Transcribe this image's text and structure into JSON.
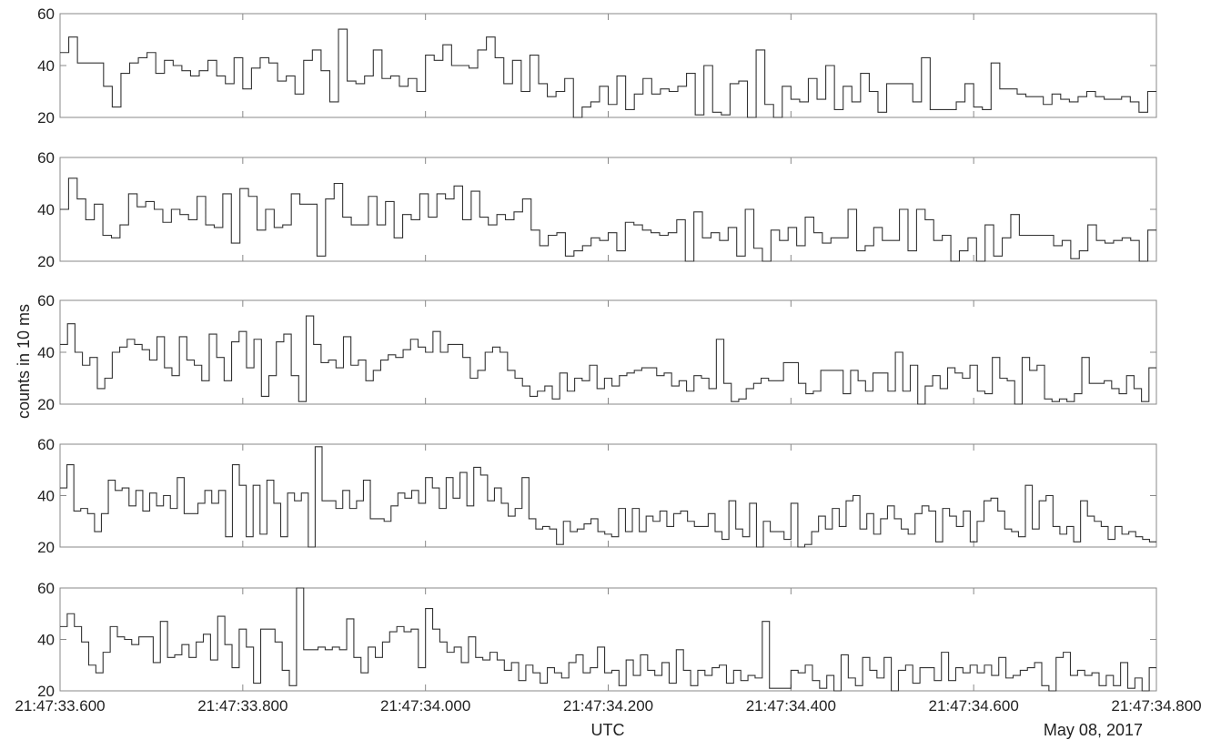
{
  "chart_data": {
    "type": "line",
    "subtype": "step",
    "panel_count": 5,
    "ylabel": "counts in 10 ms",
    "xlabel": "UTC",
    "date_label": "May 08, 2017",
    "ylim": [
      20,
      60
    ],
    "yticks": [
      "20",
      "40",
      "60"
    ],
    "xlim": [
      "21:47:33.600",
      "21:47:34.800"
    ],
    "xticks": [
      "21:47:33.600",
      "21:47:33.800",
      "21:47:34.000",
      "21:47:34.200",
      "21:47:34.400",
      "21:47:34.600",
      "21:47:34.800"
    ],
    "x_start": "21:47:33.600",
    "bin_width_ms": 10,
    "grid": false,
    "legend": "none",
    "colors": {
      "line": "#333333",
      "axis": "#888888"
    },
    "series": [
      {
        "values": [
          45,
          51,
          41,
          41,
          41,
          32,
          24,
          37,
          41,
          43,
          45,
          37,
          42,
          40,
          38,
          36,
          38,
          42,
          36,
          33,
          43,
          31,
          39,
          43,
          41,
          34,
          36,
          29,
          42,
          46,
          38,
          26,
          54,
          34,
          33,
          36,
          46,
          35,
          36,
          32,
          35,
          30,
          44,
          42,
          48,
          40,
          40,
          39,
          46,
          51,
          43,
          33,
          42,
          30,
          44,
          33,
          28,
          30,
          35,
          20,
          24,
          26,
          32,
          25,
          36,
          23,
          29,
          35,
          29,
          31,
          30,
          32,
          37,
          21,
          40,
          22,
          21,
          33,
          34,
          20,
          46,
          25,
          20,
          32,
          27,
          26,
          35,
          27,
          40,
          23,
          32,
          26,
          37,
          30,
          22,
          33,
          33,
          33,
          26,
          43,
          23,
          23,
          23,
          26,
          33,
          24,
          23,
          41,
          31,
          31,
          29,
          28,
          28,
          25,
          29,
          27,
          26,
          28,
          30,
          28,
          27,
          27,
          28,
          26,
          22,
          30
        ]
      },
      {
        "values": [
          40,
          52,
          44,
          36,
          42,
          30,
          29,
          34,
          46,
          41,
          43,
          40,
          35,
          40,
          38,
          36,
          45,
          34,
          33,
          46,
          27,
          48,
          45,
          32,
          40,
          33,
          34,
          46,
          42,
          42,
          22,
          44,
          50,
          37,
          34,
          34,
          45,
          34,
          43,
          29,
          38,
          36,
          46,
          37,
          46,
          44,
          49,
          36,
          47,
          37,
          34,
          38,
          36,
          39,
          44,
          32,
          26,
          30,
          31,
          22,
          24,
          26,
          29,
          28,
          31,
          24,
          35,
          34,
          32,
          31,
          30,
          31,
          36,
          20,
          39,
          29,
          31,
          28,
          33,
          22,
          40,
          25,
          20,
          32,
          28,
          33,
          26,
          37,
          31,
          27,
          29,
          29,
          40,
          24,
          26,
          33,
          28,
          28,
          40,
          24,
          40,
          36,
          28,
          30,
          20,
          24,
          29,
          20,
          34,
          22,
          29,
          38,
          30,
          30,
          30,
          30,
          26,
          28,
          21,
          24,
          34,
          28,
          27,
          28,
          29,
          28,
          20,
          32
        ]
      },
      {
        "values": [
          43,
          51,
          40,
          35,
          38,
          26,
          30,
          40,
          42,
          45,
          43,
          41,
          37,
          46,
          34,
          31,
          46,
          37,
          35,
          29,
          47,
          38,
          29,
          44,
          48,
          34,
          45,
          23,
          31,
          44,
          47,
          31,
          21,
          54,
          43,
          36,
          37,
          34,
          46,
          35,
          37,
          29,
          33,
          37,
          39,
          38,
          41,
          45,
          42,
          40,
          48,
          40,
          43,
          43,
          38,
          30,
          33,
          40,
          42,
          40,
          33,
          30,
          27,
          23,
          25,
          27,
          22,
          32,
          25,
          30,
          29,
          35,
          26,
          30,
          27,
          31,
          32,
          33,
          34,
          34,
          31,
          32,
          27,
          29,
          25,
          31,
          30,
          26,
          45,
          28,
          21,
          22,
          26,
          28,
          30,
          29,
          29,
          36,
          36,
          28,
          24,
          25,
          33,
          33,
          33,
          24,
          33,
          29,
          25,
          32,
          32,
          25,
          40,
          25,
          35,
          20,
          27,
          31,
          26,
          34,
          32,
          30,
          35,
          25,
          24,
          38,
          30,
          29,
          20,
          38,
          33,
          35,
          22,
          21,
          22,
          21,
          24,
          38,
          28,
          28,
          29,
          26,
          24,
          31,
          26,
          21,
          34
        ]
      },
      {
        "values": [
          43,
          52,
          34,
          35,
          33,
          26,
          33,
          46,
          42,
          43,
          36,
          42,
          34,
          41,
          36,
          40,
          35,
          47,
          33,
          33,
          37,
          42,
          37,
          42,
          24,
          52,
          44,
          24,
          44,
          25,
          46,
          37,
          24,
          41,
          38,
          41,
          20,
          59,
          38,
          38,
          35,
          42,
          35,
          38,
          46,
          31,
          31,
          30,
          36,
          41,
          39,
          42,
          37,
          47,
          43,
          35,
          47,
          39,
          49,
          36,
          51,
          48,
          38,
          43,
          37,
          32,
          35,
          47,
          31,
          27,
          28,
          27,
          21,
          30,
          26,
          27,
          29,
          31,
          26,
          25,
          24,
          35,
          26,
          35,
          26,
          32,
          30,
          34,
          28,
          33,
          34,
          30,
          28,
          28,
          33,
          26,
          23,
          38,
          27,
          24,
          37,
          20,
          30,
          26,
          26,
          23,
          37,
          20,
          21,
          26,
          32,
          27,
          35,
          28,
          38,
          40,
          27,
          33,
          25,
          31,
          36,
          31,
          27,
          25,
          33,
          36,
          34,
          22,
          35,
          32,
          28,
          34,
          22,
          30,
          38,
          39,
          34,
          27,
          26,
          24,
          44,
          27,
          38,
          40,
          28,
          25,
          28,
          22,
          38,
          32,
          30,
          28,
          23,
          28,
          25,
          26,
          24,
          23,
          22
        ]
      },
      {
        "values": [
          45,
          50,
          45,
          39,
          30,
          27,
          35,
          45,
          41,
          40,
          38,
          41,
          41,
          31,
          47,
          33,
          34,
          38,
          33,
          39,
          42,
          32,
          49,
          38,
          29,
          44,
          37,
          23,
          44,
          44,
          39,
          28,
          22,
          60,
          36,
          36,
          37,
          36,
          37,
          36,
          48,
          33,
          27,
          37,
          33,
          39,
          43,
          45,
          43,
          44,
          29,
          52,
          44,
          39,
          35,
          37,
          31,
          41,
          33,
          32,
          35,
          32,
          28,
          31,
          24,
          30,
          27,
          23,
          29,
          27,
          25,
          31,
          34,
          27,
          29,
          37,
          27,
          28,
          22,
          32,
          26,
          34,
          28,
          26,
          31,
          23,
          36,
          28,
          22,
          28,
          26,
          29,
          30,
          23,
          28,
          24,
          26,
          25,
          47,
          21,
          21,
          21,
          28,
          27,
          30,
          24,
          21,
          26,
          20,
          34,
          25,
          22,
          33,
          28,
          25,
          33,
          20,
          28,
          30,
          23,
          29,
          29,
          24,
          35,
          24,
          29,
          27,
          30,
          27,
          30,
          26,
          33,
          25,
          26,
          28,
          29,
          31,
          22,
          20,
          33,
          35,
          26,
          28,
          26,
          27,
          22,
          26,
          22,
          31,
          21,
          25,
          20,
          29
        ]
      }
    ]
  }
}
